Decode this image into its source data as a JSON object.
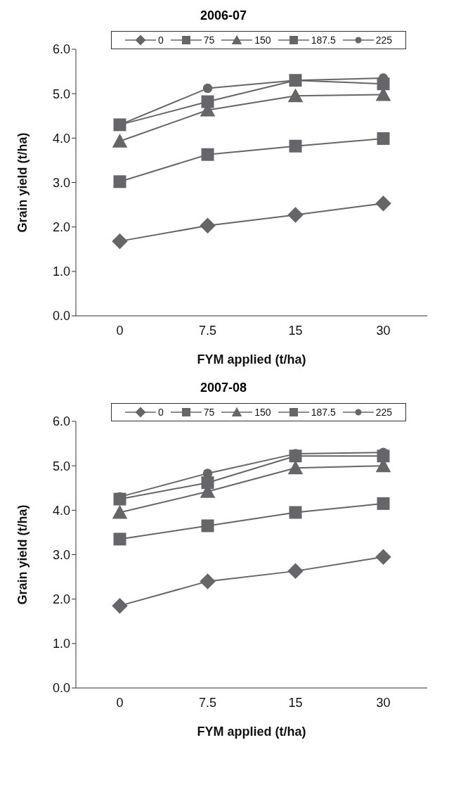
{
  "chart_data": [
    {
      "type": "line",
      "title": "2006-07",
      "xlabel": "FYM applied (t/ha)",
      "ylabel": "Grain yield (t/ha)",
      "categories": [
        "0",
        "7.5",
        "15",
        "30"
      ],
      "ylim": [
        0,
        6
      ],
      "yticks": [
        {
          "value": 0,
          "label": "0.0"
        },
        {
          "value": 1,
          "label": "1.0"
        },
        {
          "value": 2,
          "label": "2.0"
        },
        {
          "value": 3,
          "label": "3.0"
        },
        {
          "value": 4,
          "label": "4.0"
        },
        {
          "value": 5,
          "label": "5.0"
        },
        {
          "value": 6,
          "label": "6.0"
        }
      ],
      "grid": false,
      "legend": "top",
      "line_style": "solid",
      "series": [
        {
          "name": "0",
          "color": "#66666a",
          "marker": "diamond",
          "values": [
            1.68,
            2.03,
            2.27,
            2.53
          ]
        },
        {
          "name": "75",
          "color": "#66666a",
          "marker": "square",
          "values": [
            3.02,
            3.63,
            3.82,
            3.99
          ]
        },
        {
          "name": "150",
          "color": "#66666a",
          "marker": "triangle",
          "values": [
            3.93,
            4.63,
            4.95,
            4.98
          ]
        },
        {
          "name": "187.5",
          "color": "#66666a",
          "marker": "square",
          "values": [
            4.3,
            4.82,
            5.3,
            5.22
          ]
        },
        {
          "name": "225",
          "color": "#66666a",
          "marker": "circle",
          "values": [
            4.3,
            5.12,
            5.3,
            5.35
          ]
        }
      ]
    },
    {
      "type": "line",
      "title": "2007-08",
      "xlabel": "FYM applied (t/ha)",
      "ylabel": "Grain yield (t/ha)",
      "categories": [
        "0",
        "7.5",
        "15",
        "30"
      ],
      "ylim": [
        0,
        6
      ],
      "yticks": [
        {
          "value": 0,
          "label": "0.0"
        },
        {
          "value": 1,
          "label": "1.0"
        },
        {
          "value": 2,
          "label": "2.0"
        },
        {
          "value": 3,
          "label": "3.0"
        },
        {
          "value": 4,
          "label": "4.0"
        },
        {
          "value": 5,
          "label": "5.0"
        },
        {
          "value": 6,
          "label": "6.0"
        }
      ],
      "grid": false,
      "legend": "top",
      "line_style": "solid",
      "series": [
        {
          "name": "0",
          "color": "#66666a",
          "marker": "diamond",
          "values": [
            1.85,
            2.4,
            2.63,
            2.95
          ]
        },
        {
          "name": "75",
          "color": "#66666a",
          "marker": "square",
          "values": [
            3.35,
            3.65,
            3.95,
            4.15
          ]
        },
        {
          "name": "150",
          "color": "#66666a",
          "marker": "triangle",
          "values": [
            3.95,
            4.42,
            4.95,
            5.0
          ]
        },
        {
          "name": "187.5",
          "color": "#66666a",
          "marker": "square",
          "values": [
            4.25,
            4.62,
            5.22,
            5.22
          ]
        },
        {
          "name": "225",
          "color": "#66666a",
          "marker": "circle",
          "values": [
            4.3,
            4.83,
            5.27,
            5.3
          ]
        }
      ]
    }
  ]
}
